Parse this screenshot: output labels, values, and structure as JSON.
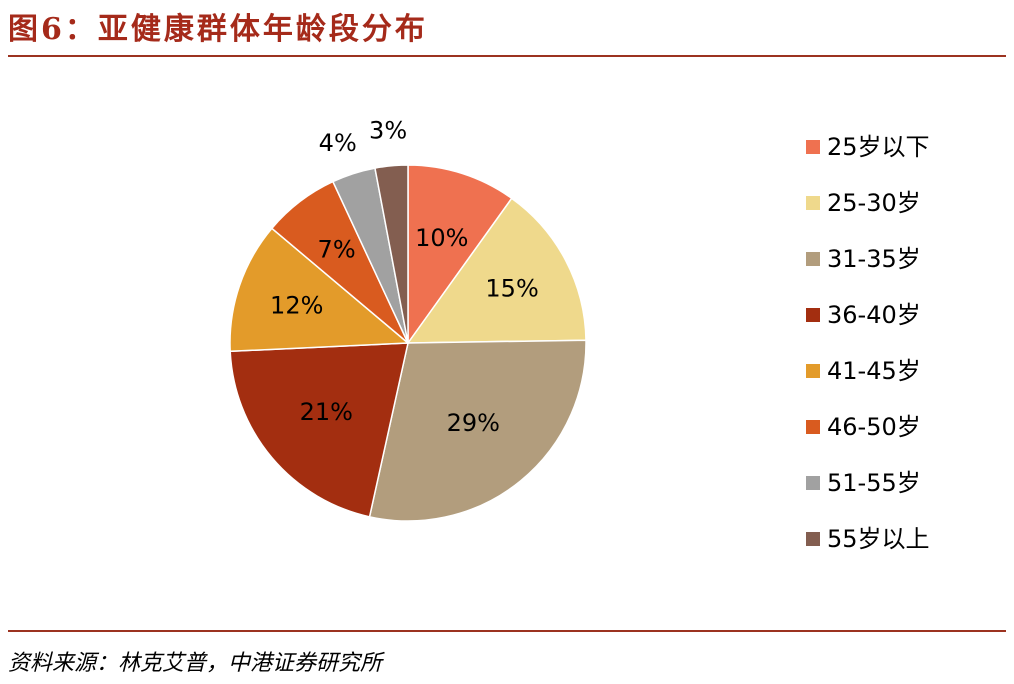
{
  "figure": {
    "title": "图6：亚健康群体年龄段分布",
    "source": "资料来源：林克艾普，中港证券研究所"
  },
  "chart_data": {
    "type": "pie",
    "title": "",
    "legend_placement": "right",
    "start_angle_deg": 0,
    "direction": "clockwise",
    "categories": [
      "25岁以下",
      "25-30岁",
      "31-35岁",
      "36-40岁",
      "41-45岁",
      "46-50岁",
      "51-55岁",
      "55岁以上"
    ],
    "values": [
      10,
      15,
      29,
      21,
      12,
      7,
      4,
      3
    ],
    "labels": [
      "10%",
      "15%",
      "29%",
      "21%",
      "12%",
      "7%",
      "4%",
      "3%"
    ],
    "colors": [
      "#ef7150",
      "#efd98c",
      "#b29d7d",
      "#a32e10",
      "#e39b2a",
      "#d95b1f",
      "#a1a1a1",
      "#835e50"
    ]
  }
}
